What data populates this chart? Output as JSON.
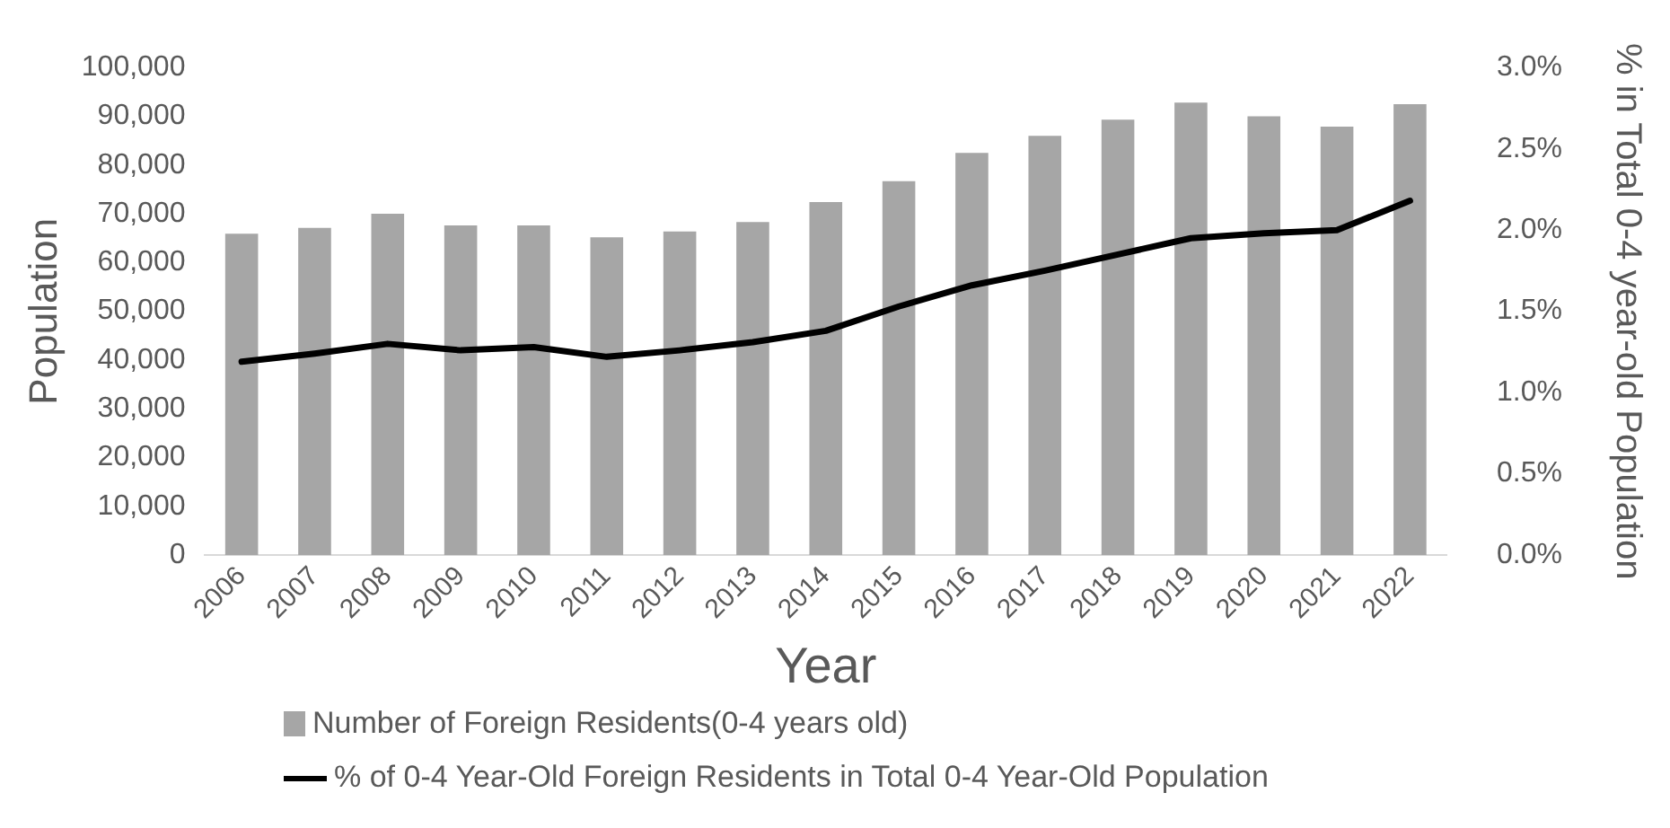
{
  "chart_data": {
    "type": "bar",
    "categories": [
      "2006",
      "2007",
      "2008",
      "2009",
      "2010",
      "2011",
      "2012",
      "2013",
      "2014",
      "2015",
      "2016",
      "2017",
      "2018",
      "2019",
      "2020",
      "2021",
      "2022"
    ],
    "xlabel": "Year",
    "ylabel": "Population",
    "y2label": "% in Total 0-4 year-old Population",
    "series": [
      {
        "name": "Number of Foreign Residents(0-4 years old)",
        "color": "#a6a6a6",
        "values": [
          65900,
          67100,
          70000,
          67600,
          67600,
          65200,
          66400,
          68300,
          72400,
          76700,
          82500,
          86000,
          89300,
          92800,
          90000,
          87900,
          92500
        ]
      },
      {
        "name": "% of 0-4 Year-Old Foreign Residents in Total 0-4 Year-Old Population",
        "type": "line",
        "axis": "y2",
        "color": "#000000",
        "values": [
          1.19,
          1.24,
          1.3,
          1.26,
          1.28,
          1.22,
          1.26,
          1.31,
          1.38,
          1.53,
          1.66,
          1.75,
          1.85,
          1.95,
          1.98,
          2.0,
          2.18
        ]
      }
    ],
    "ylim": [
      0,
      100000
    ],
    "yticks": [
      {
        "value": 0,
        "label": "0"
      },
      {
        "value": 10000,
        "label": "10,000"
      },
      {
        "value": 20000,
        "label": "20,000"
      },
      {
        "value": 30000,
        "label": "30,000"
      },
      {
        "value": 40000,
        "label": "40,000"
      },
      {
        "value": 50000,
        "label": "50,000"
      },
      {
        "value": 60000,
        "label": "60,000"
      },
      {
        "value": 70000,
        "label": "70,000"
      },
      {
        "value": 80000,
        "label": "80,000"
      },
      {
        "value": 90000,
        "label": "90,000"
      },
      {
        "value": 100000,
        "label": "100,000"
      }
    ],
    "y2lim": [
      0,
      3
    ],
    "y2ticks": [
      {
        "value": 0,
        "label": "0.0%"
      },
      {
        "value": 0.5,
        "label": "0.5%"
      },
      {
        "value": 1,
        "label": "1.0%"
      },
      {
        "value": 1.5,
        "label": "1.5%"
      },
      {
        "value": 2,
        "label": "2.0%"
      },
      {
        "value": 2.5,
        "label": "2.5%"
      },
      {
        "value": 3,
        "label": "3.0%"
      }
    ],
    "grid": false,
    "legend": "bottom left",
    "marker": "none",
    "line_style": "solid"
  }
}
